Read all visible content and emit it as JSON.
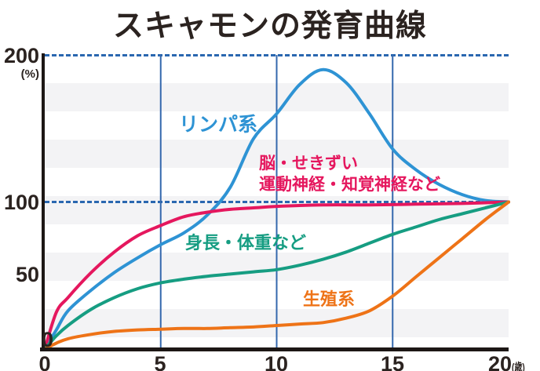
{
  "title": "スキャモンの発育曲線",
  "colors": {
    "text": "#2b2320",
    "axis": "#1d1715",
    "gridline": "#3468ad",
    "dashed_line": "#2a67b0",
    "stripe": "#f3f3f5",
    "lymphoid": "#2e93d4",
    "neural": "#e5175e",
    "general": "#169d82",
    "reproductive": "#ee7317"
  },
  "chart_data": {
    "type": "line",
    "title": "スキャモンの発育曲線",
    "xlabel": "",
    "ylabel": "",
    "x_unit": "(歳)",
    "y_unit": "(%)",
    "xlim": [
      0,
      20
    ],
    "ylim": [
      0,
      200
    ],
    "x_ticks": [
      "0",
      "5",
      "10",
      "15",
      "20"
    ],
    "y_ticks": [
      "200",
      "100",
      "50",
      "0"
    ],
    "x_gridlines": [
      5,
      10,
      15
    ],
    "dashed_levels": [
      100,
      200
    ],
    "grid": "horizontal stripes + vertical blue lines at ages 5/10/15",
    "legend_position": "labels on curves",
    "series": [
      {
        "name": "lymphoid",
        "label": "リンパ系",
        "color": "#2e93d4",
        "points": [
          [
            0,
            0
          ],
          [
            0.5,
            13
          ],
          [
            1,
            26
          ],
          [
            2,
            40
          ],
          [
            3,
            52
          ],
          [
            4,
            62
          ],
          [
            5,
            71
          ],
          [
            6,
            79
          ],
          [
            7,
            91
          ],
          [
            8,
            110
          ],
          [
            9,
            143
          ],
          [
            10,
            160
          ],
          [
            11,
            180
          ],
          [
            12,
            190
          ],
          [
            13,
            181
          ],
          [
            14,
            160
          ],
          [
            15,
            136
          ],
          [
            16,
            122
          ],
          [
            17,
            112
          ],
          [
            18,
            105
          ],
          [
            19,
            101
          ],
          [
            20,
            100
          ]
        ]
      },
      {
        "name": "neural",
        "label": "脳・せきずい\n運動神経・知覚神経など",
        "label_lines": [
          "脳・せきずい",
          "運動神経・知覚神経など"
        ],
        "color": "#e5175e",
        "points": [
          [
            0,
            0
          ],
          [
            0.5,
            25
          ],
          [
            1,
            35
          ],
          [
            2,
            52
          ],
          [
            3,
            66
          ],
          [
            4,
            77
          ],
          [
            5,
            84
          ],
          [
            6,
            90
          ],
          [
            7,
            93
          ],
          [
            8,
            95
          ],
          [
            9,
            96
          ],
          [
            10,
            97
          ],
          [
            12,
            98
          ],
          [
            14,
            98
          ],
          [
            16,
            98.5
          ],
          [
            18,
            99
          ],
          [
            20,
            100
          ]
        ]
      },
      {
        "name": "general",
        "label": "身長・体重など",
        "color": "#169d82",
        "points": [
          [
            0,
            0
          ],
          [
            0.5,
            9
          ],
          [
            1,
            16
          ],
          [
            2,
            27
          ],
          [
            3,
            35
          ],
          [
            4,
            41
          ],
          [
            5,
            45
          ],
          [
            6,
            47.5
          ],
          [
            7,
            49.5
          ],
          [
            8,
            51
          ],
          [
            9,
            52.5
          ],
          [
            10,
            54
          ],
          [
            11,
            57
          ],
          [
            12,
            61
          ],
          [
            13,
            66
          ],
          [
            14,
            72
          ],
          [
            15,
            78
          ],
          [
            16,
            83
          ],
          [
            17,
            88
          ],
          [
            18,
            92
          ],
          [
            19,
            96
          ],
          [
            20,
            100
          ]
        ]
      },
      {
        "name": "reproductive",
        "label": "生殖系",
        "color": "#ee7317",
        "points": [
          [
            0,
            0
          ],
          [
            0.5,
            4
          ],
          [
            1,
            7
          ],
          [
            2,
            10
          ],
          [
            3,
            12
          ],
          [
            4,
            13
          ],
          [
            5,
            13.5
          ],
          [
            6,
            14
          ],
          [
            7,
            14
          ],
          [
            8,
            14.5
          ],
          [
            9,
            15
          ],
          [
            10,
            16
          ],
          [
            11,
            17
          ],
          [
            12,
            18
          ],
          [
            13,
            21
          ],
          [
            14,
            26
          ],
          [
            15,
            36
          ],
          [
            16,
            49
          ],
          [
            17,
            62
          ],
          [
            18,
            75
          ],
          [
            19,
            88
          ],
          [
            20,
            100
          ]
        ]
      }
    ]
  }
}
